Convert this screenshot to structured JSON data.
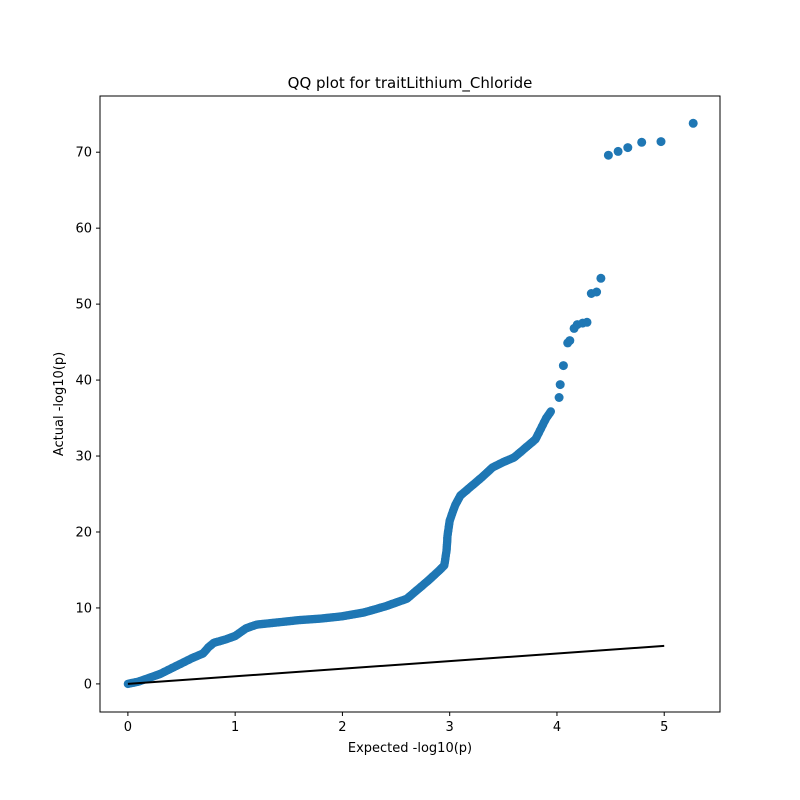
{
  "chart_data": {
    "type": "scatter",
    "title": "QQ plot for traitLithium_Chloride",
    "xlabel": "Expected -log10(p)",
    "ylabel": "Actual -log10(p)",
    "xlim": [
      -0.26,
      5.52
    ],
    "ylim": [
      -3.7,
      77.4
    ],
    "x_ticks": [
      0,
      1,
      2,
      3,
      4,
      5
    ],
    "x_tick_labels": [
      "0",
      "1",
      "2",
      "3",
      "4",
      "5"
    ],
    "y_ticks": [
      0,
      10,
      20,
      30,
      40,
      50,
      60,
      70
    ],
    "y_tick_labels": [
      "0",
      "10",
      "20",
      "30",
      "40",
      "50",
      "60",
      "70"
    ],
    "grid": false,
    "marker_color": "#1f77b4",
    "line_color": "#000000",
    "reference_line": {
      "x": [
        0,
        5
      ],
      "y": [
        0,
        5
      ]
    },
    "curve_knots": [
      [
        0.0,
        0.0
      ],
      [
        0.1,
        0.3
      ],
      [
        0.2,
        0.8
      ],
      [
        0.3,
        1.3
      ],
      [
        0.4,
        2.0
      ],
      [
        0.5,
        2.7
      ],
      [
        0.6,
        3.4
      ],
      [
        0.7,
        4.0
      ],
      [
        0.75,
        4.8
      ],
      [
        0.8,
        5.4
      ],
      [
        0.9,
        5.8
      ],
      [
        1.0,
        6.3
      ],
      [
        1.1,
        7.3
      ],
      [
        1.2,
        7.8
      ],
      [
        1.4,
        8.1
      ],
      [
        1.6,
        8.4
      ],
      [
        1.8,
        8.6
      ],
      [
        2.0,
        8.9
      ],
      [
        2.2,
        9.4
      ],
      [
        2.4,
        10.2
      ],
      [
        2.6,
        11.2
      ],
      [
        2.7,
        12.4
      ],
      [
        2.8,
        13.6
      ],
      [
        2.9,
        14.9
      ],
      [
        2.95,
        15.6
      ],
      [
        2.97,
        17.5
      ],
      [
        2.98,
        19.5
      ],
      [
        3.0,
        21.5
      ],
      [
        3.05,
        23.5
      ],
      [
        3.1,
        24.8
      ],
      [
        3.2,
        26.0
      ],
      [
        3.3,
        27.2
      ],
      [
        3.4,
        28.5
      ],
      [
        3.5,
        29.2
      ],
      [
        3.6,
        29.8
      ],
      [
        3.7,
        31.0
      ],
      [
        3.8,
        32.2
      ],
      [
        3.85,
        33.6
      ],
      [
        3.9,
        35.0
      ],
      [
        3.95,
        36.0
      ]
    ],
    "tail_points": [
      [
        4.02,
        37.7
      ],
      [
        4.03,
        39.4
      ],
      [
        4.06,
        41.9
      ],
      [
        4.1,
        44.9
      ],
      [
        4.12,
        45.2
      ],
      [
        4.16,
        46.8
      ],
      [
        4.19,
        47.3
      ],
      [
        4.24,
        47.5
      ],
      [
        4.28,
        47.6
      ],
      [
        4.32,
        51.4
      ],
      [
        4.37,
        51.6
      ],
      [
        4.41,
        53.4
      ],
      [
        4.48,
        69.6
      ],
      [
        4.57,
        70.1
      ],
      [
        4.66,
        70.6
      ],
      [
        4.79,
        71.3
      ],
      [
        4.97,
        71.4
      ],
      [
        5.27,
        73.8
      ]
    ]
  }
}
